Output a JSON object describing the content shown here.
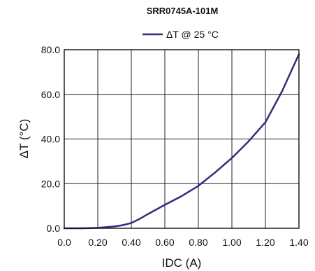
{
  "chart_data": {
    "type": "line",
    "title": "SRR0745A-101M",
    "xlabel": "IDC (A)",
    "ylabel": "ΔT (°C)",
    "xlim": [
      0.0,
      1.4
    ],
    "ylim": [
      0.0,
      80.0
    ],
    "x_ticks": [
      "0.0",
      "0.20",
      "0.40",
      "0.60",
      "0.80",
      "1.00",
      "1.20",
      "1.40"
    ],
    "y_ticks": [
      "0.0",
      "20.0",
      "40.0",
      "60.0",
      "80.0"
    ],
    "x_tick_values": [
      0.0,
      0.2,
      0.4,
      0.6,
      0.8,
      1.0,
      1.2,
      1.4
    ],
    "y_tick_values": [
      0.0,
      20.0,
      40.0,
      60.0,
      80.0
    ],
    "grid": true,
    "legend_position": "top-center",
    "series": [
      {
        "name": "ΔT @ 25 °C",
        "color": "#2e2f80",
        "points": [
          [
            0.0,
            0.0
          ],
          [
            0.1,
            0.0
          ],
          [
            0.2,
            0.2
          ],
          [
            0.3,
            0.8
          ],
          [
            0.35,
            1.4
          ],
          [
            0.4,
            2.4
          ],
          [
            0.45,
            4.2
          ],
          [
            0.5,
            6.4
          ],
          [
            0.6,
            10.5
          ],
          [
            0.7,
            14.4
          ],
          [
            0.8,
            19.0
          ],
          [
            0.9,
            25.0
          ],
          [
            1.0,
            31.5
          ],
          [
            1.1,
            39.0
          ],
          [
            1.2,
            47.5
          ],
          [
            1.3,
            61.5
          ],
          [
            1.4,
            78.0
          ]
        ]
      }
    ]
  }
}
